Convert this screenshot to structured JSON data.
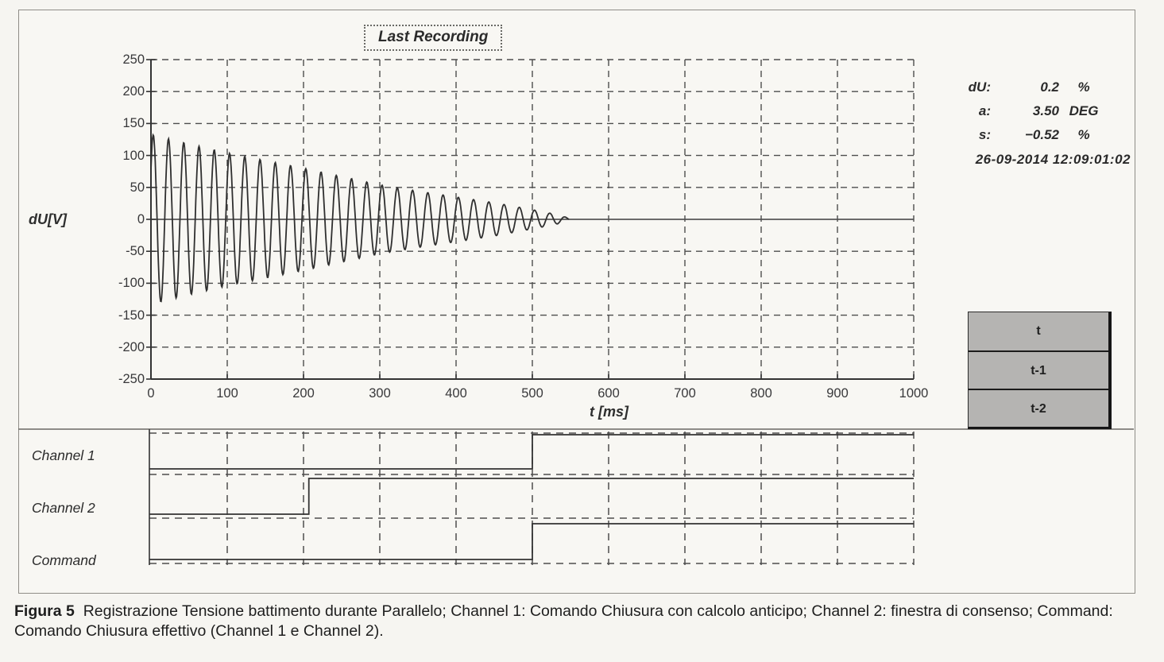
{
  "colors": {
    "paper": "#f8f7f3",
    "ink": "#262626",
    "grid": "#4d4d4d",
    "trace": "#2f2f2f",
    "frame": "#8f8d87",
    "button_fill": "#b5b4b2",
    "button_border": "#161616"
  },
  "title": "Last Recording",
  "measurements": [
    {
      "label": "dU:",
      "value": "0.2",
      "unit": "%"
    },
    {
      "label": "a:",
      "value": "3.50",
      "unit": "DEG"
    },
    {
      "label": "s:",
      "value": "−0.52",
      "unit": "%"
    }
  ],
  "timestamp": "26-09-2014 12:09:01:02",
  "buttons": [
    {
      "label": "t"
    },
    {
      "label": "t-1"
    },
    {
      "label": "t-2"
    }
  ],
  "caption": {
    "figure_label": "Figura 5",
    "text": "Registrazione Tensione battimento durante Parallelo; Channel 1: Comando Chiusura con calcolo anticipo; Channel 2: finestra di consenso; Command: Comando Chiusura effettivo (Channel 1 e Channel 2)."
  },
  "chart_data": {
    "type": "line",
    "title": "Last Recording",
    "xlabel": "t [ms]",
    "ylabel": "dU[V]",
    "xlim": [
      0,
      1000
    ],
    "ylim": [
      -250,
      250
    ],
    "x_ticks": [
      0,
      100,
      200,
      300,
      400,
      500,
      600,
      700,
      800,
      900,
      1000
    ],
    "y_ticks": [
      250,
      200,
      150,
      100,
      50,
      0,
      -50,
      -100,
      -150,
      -200,
      -250
    ],
    "grid": "dashed, 100 ms x 50 V, solid zero line",
    "waveform": {
      "description": "damped beat-voltage oscillation, settles onto 0 V line at ~548 ms",
      "period_ms": 20,
      "phase_ms": 2,
      "end_ms": 548,
      "tail_value_V": 0,
      "envelope_V": [
        [
          0,
          133
        ],
        [
          50,
          118
        ],
        [
          100,
          104
        ],
        [
          150,
          92
        ],
        [
          200,
          80
        ],
        [
          250,
          67
        ],
        [
          300,
          54
        ],
        [
          350,
          44
        ],
        [
          400,
          35
        ],
        [
          450,
          26
        ],
        [
          500,
          15
        ],
        [
          530,
          8
        ],
        [
          548,
          2
        ]
      ]
    },
    "digital_channels": [
      {
        "name": "Channel 1",
        "initial": 0,
        "final": 1,
        "step_ms": 500
      },
      {
        "name": "Channel 2",
        "initial": 0,
        "final": 1,
        "step_ms": 207
      },
      {
        "name": "Command",
        "initial": 0,
        "final": 1,
        "step_ms": 500
      }
    ]
  }
}
